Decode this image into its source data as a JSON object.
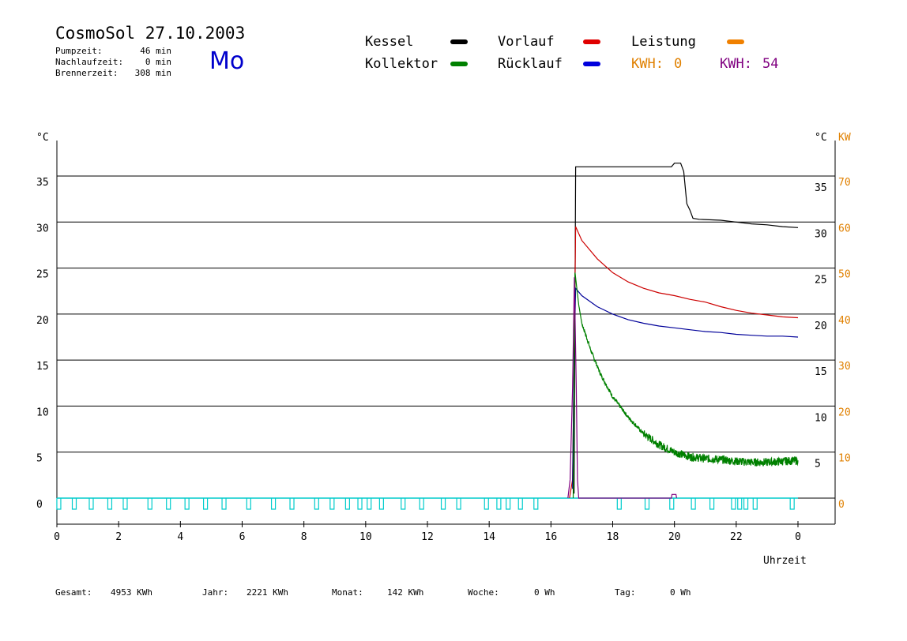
{
  "header": {
    "title": "CosmoSol 27.10.2003",
    "day": "Mo",
    "stats": [
      {
        "label": "Pumpzeit:",
        "value": "46 min"
      },
      {
        "label": "Nachlaufzeit:",
        "value": "0 min"
      },
      {
        "label": "Brennerzeit:",
        "value": "308 min"
      }
    ]
  },
  "legend": {
    "items": [
      {
        "label": "Kessel",
        "color": "#000000"
      },
      {
        "label": "Vorlauf",
        "color": "#e00000"
      },
      {
        "label": "Leistung",
        "color": "#f08000"
      },
      {
        "label": "Kollektor",
        "color": "#008000"
      },
      {
        "label": "Rücklauf",
        "color": "#0000dd"
      }
    ],
    "kwh1_label": "KWH:",
    "kwh1_value": "0",
    "kwh1_color": "#e08000",
    "kwh2_label": "KWH:",
    "kwh2_value": "54",
    "kwh2_color": "#800080"
  },
  "footer": [
    {
      "label": "Gesamt:",
      "value": "4953 KWh"
    },
    {
      "label": "Jahr:",
      "value": "2221 KWh"
    },
    {
      "label": "Monat:",
      "value": "142 KWh"
    },
    {
      "label": "Woche:",
      "value": "0 Wh"
    },
    {
      "label": "Tag:",
      "value": "0 Wh"
    }
  ],
  "chart_data": {
    "type": "line",
    "xlabel": "Uhrzeit",
    "x_ticks": [
      "0",
      "2",
      "4",
      "6",
      "8",
      "10",
      "12",
      "14",
      "16",
      "18",
      "20",
      "22",
      "0"
    ],
    "xlim": [
      0,
      24
    ],
    "y_left_unit": "°C",
    "y_right_unit_temp": "°C",
    "y_right_unit_power": "KW",
    "ylim": [
      0,
      35
    ],
    "y_ticks_left": [
      "0",
      "5",
      "10",
      "15",
      "20",
      "25",
      "30",
      "35"
    ],
    "y_ticks_right_temp": [
      "5",
      "10",
      "15",
      "20",
      "25",
      "30",
      "35"
    ],
    "y_ticks_right_power": [
      "0",
      "10",
      "20",
      "30",
      "40",
      "50",
      "60",
      "70"
    ],
    "grid": true,
    "series": [
      {
        "name": "Kessel",
        "color": "#000000",
        "points": [
          [
            16.75,
            0.5
          ],
          [
            16.8,
            36
          ],
          [
            19.9,
            36
          ],
          [
            20.0,
            36.4
          ],
          [
            20.2,
            36.4
          ],
          [
            20.3,
            35.5
          ],
          [
            20.4,
            32
          ],
          [
            20.5,
            31.3
          ],
          [
            20.6,
            30.4
          ],
          [
            20.8,
            30.3
          ],
          [
            21.5,
            30.2
          ],
          [
            22,
            30.0
          ],
          [
            22.5,
            29.8
          ],
          [
            23,
            29.7
          ],
          [
            23.5,
            29.5
          ],
          [
            24,
            29.4
          ]
        ]
      },
      {
        "name": "Vorlauf",
        "color": "#cc0000",
        "points": [
          [
            16.6,
            0
          ],
          [
            16.7,
            2
          ],
          [
            16.75,
            15
          ],
          [
            16.8,
            29.5
          ],
          [
            17,
            28
          ],
          [
            17.5,
            26
          ],
          [
            18,
            24.5
          ],
          [
            18.5,
            23.5
          ],
          [
            19,
            22.8
          ],
          [
            19.5,
            22.3
          ],
          [
            20,
            22
          ],
          [
            20.5,
            21.6
          ],
          [
            21,
            21.3
          ],
          [
            21.5,
            20.8
          ],
          [
            22,
            20.4
          ],
          [
            22.5,
            20.1
          ],
          [
            23,
            19.9
          ],
          [
            23.5,
            19.7
          ],
          [
            24,
            19.6
          ]
        ]
      },
      {
        "name": "Rücklauf",
        "color": "#000099",
        "points": [
          [
            16.7,
            1
          ],
          [
            16.75,
            15
          ],
          [
            16.8,
            22.8
          ],
          [
            17,
            22
          ],
          [
            17.5,
            20.8
          ],
          [
            18,
            20
          ],
          [
            18.5,
            19.4
          ],
          [
            19,
            19
          ],
          [
            19.5,
            18.7
          ],
          [
            20,
            18.5
          ],
          [
            20.5,
            18.3
          ],
          [
            21,
            18.1
          ],
          [
            21.5,
            18.0
          ],
          [
            22,
            17.8
          ],
          [
            22.5,
            17.7
          ],
          [
            23,
            17.6
          ],
          [
            23.5,
            17.6
          ],
          [
            24,
            17.5
          ]
        ]
      },
      {
        "name": "Kollektor",
        "color": "#008000",
        "points": [
          [
            16.72,
            0
          ],
          [
            16.78,
            24.5
          ],
          [
            16.9,
            21
          ],
          [
            17,
            19
          ],
          [
            17.3,
            16
          ],
          [
            17.6,
            13.5
          ],
          [
            18,
            11
          ],
          [
            18.5,
            8.8
          ],
          [
            19,
            7
          ],
          [
            19.5,
            5.8
          ],
          [
            20,
            5
          ],
          [
            20.5,
            4.5
          ],
          [
            21,
            4.3
          ],
          [
            21.5,
            4.2
          ],
          [
            22,
            4.0
          ],
          [
            22.5,
            3.9
          ],
          [
            23,
            3.9
          ],
          [
            23.5,
            4.0
          ],
          [
            24,
            4.1
          ]
        ]
      },
      {
        "name": "Leistung",
        "color": "#800080",
        "points": [
          [
            16.55,
            0
          ],
          [
            16.62,
            2
          ],
          [
            16.7,
            12
          ],
          [
            16.76,
            24
          ],
          [
            16.82,
            12
          ],
          [
            16.86,
            2
          ],
          [
            16.9,
            0
          ],
          [
            19.9,
            0
          ],
          [
            19.92,
            0.4
          ],
          [
            20.05,
            0.4
          ],
          [
            20.07,
            0
          ]
        ]
      }
    ],
    "pump_cyan_color": "#00cccc",
    "pump_on_hours": [
      0.05,
      0.55,
      1.1,
      1.7,
      2.2,
      3.0,
      3.6,
      4.2,
      4.8,
      5.4,
      6.2,
      7.0,
      7.6,
      8.4,
      8.9,
      9.4,
      9.8,
      10.1,
      10.5,
      11.2,
      11.8,
      12.5,
      13.0,
      13.9,
      14.3,
      14.6,
      15.0,
      15.5,
      18.2,
      19.1,
      19.9,
      20.6,
      21.2,
      21.9,
      22.1,
      22.3,
      22.6,
      23.8
    ]
  }
}
